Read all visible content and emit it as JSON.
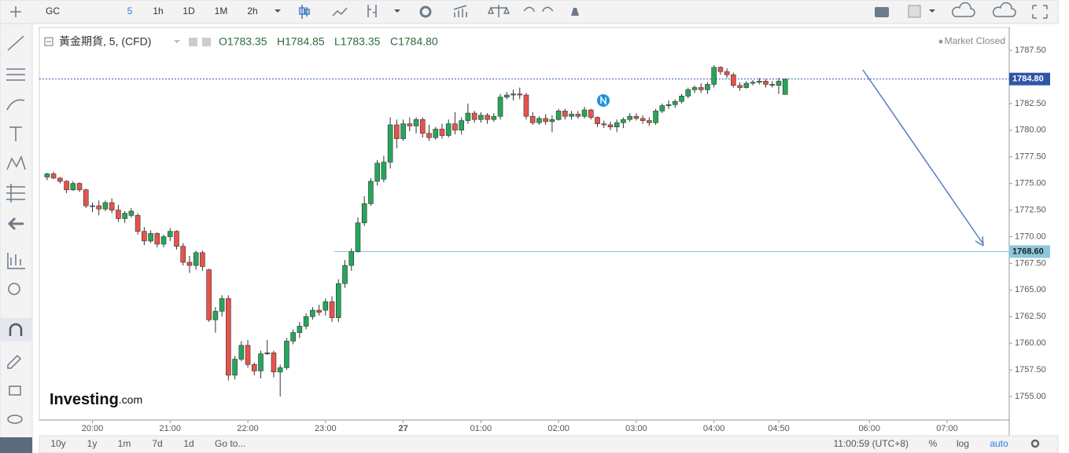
{
  "toolbar": {
    "symbol": "GC",
    "intervals": [
      "5",
      "1h",
      "1D",
      "1M",
      "2h"
    ]
  },
  "legend": {
    "name": "黃金期貨, 5, (CFD)",
    "ohlc": [
      "O1783.35",
      "H1784.85",
      "L1783.35",
      "C1784.80"
    ],
    "status": "Market Closed"
  },
  "logo": {
    "main": "Investing",
    "suffix": ".com"
  },
  "bottom_bar": {
    "ranges": [
      "10y",
      "1y",
      "1m",
      "7d",
      "1d"
    ],
    "goto": "Go to...",
    "clock": "11:00:59 (UTC+8)",
    "options": [
      "%",
      "log",
      "auto"
    ]
  },
  "chart_data": {
    "type": "candlestick",
    "up_color": "#26a65b",
    "down_color": "#e8534a",
    "x": [
      "19:25",
      "19:30",
      "19:35",
      "19:40",
      "19:45",
      "19:50",
      "19:55",
      "20:00",
      "20:05",
      "20:10",
      "20:15",
      "20:20",
      "20:25",
      "20:30",
      "20:35",
      "20:40",
      "20:45",
      "20:50",
      "20:55",
      "21:00",
      "21:05",
      "21:10",
      "21:15",
      "21:20",
      "21:25",
      "21:30",
      "21:35",
      "21:40",
      "21:45",
      "21:50",
      "21:55",
      "22:00",
      "22:05",
      "22:10",
      "22:15",
      "22:20",
      "22:25",
      "22:30",
      "22:35",
      "22:40",
      "22:45",
      "22:50",
      "22:55",
      "23:00",
      "23:05",
      "23:10",
      "23:15",
      "23:20",
      "23:25",
      "23:30",
      "23:35",
      "23:40",
      "23:45",
      "23:50",
      "23:55",
      "00:00",
      "00:05",
      "00:10",
      "00:15",
      "00:20",
      "00:25",
      "00:30",
      "00:35",
      "00:40",
      "00:45",
      "00:50",
      "00:55",
      "01:00",
      "01:05",
      "01:10",
      "01:15",
      "01:20",
      "01:25",
      "01:30",
      "01:35",
      "01:40",
      "01:45",
      "01:50",
      "01:55",
      "02:00",
      "02:05",
      "02:10",
      "02:15",
      "02:20",
      "02:25",
      "02:30",
      "02:35",
      "02:40",
      "02:45",
      "02:50",
      "02:55",
      "03:00",
      "03:05",
      "03:10",
      "03:15",
      "03:20",
      "03:25",
      "03:30",
      "03:35",
      "03:40",
      "03:45",
      "03:50",
      "03:55",
      "04:00",
      "04:05",
      "04:10",
      "04:15",
      "04:20",
      "04:25",
      "04:30",
      "04:35",
      "04:40",
      "04:45",
      "04:50",
      "04:55"
    ],
    "open": [
      1775.6,
      1775.9,
      1775.5,
      1775.2,
      1774.4,
      1775.0,
      1774.4,
      1772.9,
      1772.9,
      1772.6,
      1773.2,
      1772.5,
      1771.7,
      1772.0,
      1772.0,
      1770.5,
      1769.6,
      1770.3,
      1769.3,
      1770.0,
      1770.5,
      1769.1,
      1767.6,
      1767.3,
      1768.5,
      1766.9,
      1762.2,
      1763.0,
      1764.2,
      1757.0,
      1758.5,
      1759.8,
      1758.0,
      1757.4,
      1759.0,
      1759.1,
      1757.3,
      1757.7,
      1760.2,
      1761.0,
      1761.6,
      1762.5,
      1763.1,
      1763.1,
      1763.9,
      1762.4,
      1765.6,
      1767.3,
      1768.6,
      1771.3,
      1773.1,
      1775.2,
      1775.4,
      1777.0,
      1780.5,
      1779.2,
      1780.6,
      1780.4,
      1781.0,
      1779.7,
      1779.3,
      1780.1,
      1779.5,
      1780.6,
      1780.0,
      1780.9,
      1781.6,
      1781.0,
      1781.4,
      1781.0,
      1781.3,
      1783.1,
      1783.3,
      1783.4,
      1783.3,
      1781.3,
      1780.7,
      1781.1,
      1780.8,
      1781.0,
      1781.8,
      1781.3,
      1781.5,
      1781.3,
      1781.9,
      1781.2,
      1780.6,
      1780.5,
      1780.3,
      1780.7,
      1781.0,
      1781.3,
      1781.1,
      1780.9,
      1780.7,
      1781.8,
      1782.3,
      1782.4,
      1782.7,
      1783.2,
      1783.8,
      1784.0,
      1783.8,
      1784.3,
      1785.9,
      1785.5,
      1785.2,
      1784.2,
      1784.0,
      1784.4,
      1784.5,
      1784.6,
      1784.3,
      1784.2,
      1783.35
    ],
    "high": [
      1776.0,
      1776.1,
      1775.6,
      1775.3,
      1775.2,
      1775.1,
      1774.5,
      1773.2,
      1773.4,
      1773.4,
      1773.6,
      1773.0,
      1772.4,
      1772.7,
      1772.2,
      1770.9,
      1770.6,
      1770.4,
      1770.2,
      1770.8,
      1770.6,
      1769.4,
      1768.2,
      1768.7,
      1768.7,
      1767.0,
      1763.4,
      1764.5,
      1764.5,
      1758.8,
      1760.2,
      1760.3,
      1758.2,
      1759.3,
      1760.3,
      1759.3,
      1758.0,
      1760.5,
      1761.3,
      1762.0,
      1762.8,
      1763.4,
      1763.6,
      1764.2,
      1764.4,
      1766.0,
      1767.8,
      1768.9,
      1771.8,
      1773.8,
      1775.5,
      1777.2,
      1777.6,
      1781.2,
      1781.0,
      1781.0,
      1781.2,
      1781.2,
      1781.2,
      1780.5,
      1780.3,
      1780.6,
      1781.0,
      1781.7,
      1781.2,
      1782.5,
      1781.8,
      1781.7,
      1781.6,
      1781.6,
      1783.4,
      1783.6,
      1783.8,
      1784.0,
      1783.5,
      1781.7,
      1781.3,
      1781.5,
      1781.4,
      1782.0,
      1782.0,
      1781.8,
      1781.8,
      1782.2,
      1782.0,
      1781.3,
      1780.9,
      1780.8,
      1781.0,
      1781.2,
      1781.6,
      1781.6,
      1781.4,
      1781.2,
      1782.0,
      1782.5,
      1782.8,
      1782.9,
      1783.4,
      1784.0,
      1784.2,
      1784.4,
      1784.5,
      1786.1,
      1786.0,
      1785.8,
      1785.4,
      1784.5,
      1784.6,
      1784.7,
      1784.9,
      1784.8,
      1784.6,
      1784.9,
      1784.85
    ],
    "low": [
      1775.3,
      1775.4,
      1775.0,
      1774.1,
      1774.3,
      1774.2,
      1772.7,
      1772.3,
      1772.0,
      1772.4,
      1772.2,
      1771.4,
      1771.3,
      1771.8,
      1770.2,
      1769.2,
      1769.4,
      1769.0,
      1769.0,
      1769.6,
      1768.8,
      1767.3,
      1766.6,
      1766.9,
      1766.8,
      1762.0,
      1761.0,
      1762.5,
      1756.5,
      1756.6,
      1758.3,
      1757.7,
      1757.0,
      1756.7,
      1758.9,
      1756.8,
      1755.0,
      1757.5,
      1759.9,
      1760.5,
      1761.3,
      1762.2,
      1762.6,
      1762.6,
      1762.0,
      1762.0,
      1765.2,
      1766.8,
      1768.5,
      1771.0,
      1772.9,
      1774.8,
      1775.1,
      1776.4,
      1778.3,
      1779.0,
      1779.9,
      1779.7,
      1779.3,
      1779.0,
      1779.1,
      1779.2,
      1779.3,
      1779.6,
      1779.6,
      1780.6,
      1780.7,
      1780.7,
      1780.6,
      1780.8,
      1781.0,
      1782.9,
      1782.8,
      1782.9,
      1781.0,
      1780.5,
      1780.5,
      1780.5,
      1779.8,
      1780.9,
      1781.0,
      1781.0,
      1781.1,
      1781.1,
      1781.0,
      1780.3,
      1780.2,
      1780.0,
      1779.8,
      1780.2,
      1780.8,
      1780.9,
      1780.6,
      1780.4,
      1780.5,
      1781.6,
      1782.0,
      1782.1,
      1782.5,
      1783.0,
      1783.5,
      1783.5,
      1783.4,
      1784.0,
      1785.2,
      1784.9,
      1784.0,
      1783.7,
      1783.9,
      1784.2,
      1784.3,
      1784.0,
      1784.0,
      1783.4,
      1783.35
    ],
    "close": [
      1775.9,
      1775.5,
      1775.2,
      1774.4,
      1775.0,
      1774.4,
      1772.9,
      1772.9,
      1772.6,
      1773.2,
      1772.5,
      1771.7,
      1772.2,
      1772.4,
      1770.5,
      1769.6,
      1770.3,
      1769.3,
      1770.0,
      1770.5,
      1769.1,
      1767.6,
      1767.3,
      1768.5,
      1767.2,
      1762.2,
      1763.0,
      1764.2,
      1757.0,
      1758.5,
      1759.8,
      1758.0,
      1757.4,
      1759.0,
      1759.1,
      1757.3,
      1757.7,
      1760.2,
      1761.0,
      1761.6,
      1762.5,
      1763.1,
      1762.9,
      1763.9,
      1762.4,
      1765.6,
      1767.3,
      1768.6,
      1771.3,
      1773.1,
      1775.2,
      1776.9,
      1777.0,
      1780.5,
      1779.2,
      1780.6,
      1780.4,
      1781.0,
      1779.7,
      1779.3,
      1780.1,
      1779.5,
      1780.6,
      1780.0,
      1780.9,
      1781.6,
      1781.0,
      1781.4,
      1781.0,
      1781.3,
      1783.1,
      1783.3,
      1783.4,
      1783.3,
      1781.3,
      1780.7,
      1781.1,
      1780.8,
      1781.0,
      1781.8,
      1781.3,
      1781.5,
      1781.3,
      1781.9,
      1781.2,
      1780.6,
      1780.5,
      1780.3,
      1780.7,
      1781.0,
      1781.3,
      1781.1,
      1780.9,
      1780.7,
      1781.8,
      1782.3,
      1782.4,
      1782.7,
      1783.2,
      1783.8,
      1784.0,
      1783.8,
      1784.3,
      1785.9,
      1785.5,
      1785.2,
      1784.2,
      1784.0,
      1784.4,
      1784.5,
      1784.6,
      1784.3,
      1784.2,
      1784.6,
      1784.8
    ],
    "xlim": [
      "19:19",
      "07:48"
    ],
    "xticks": [
      "20:00",
      "21:00",
      "22:00",
      "23:00",
      "27",
      "01:00",
      "02:00",
      "03:00",
      "04:00",
      "04:50",
      "06:00",
      "07:00"
    ],
    "ylim": [
      1752.79,
      1789.64
    ],
    "yticks": [
      {
        "value": 1755,
        "label": "1755.00"
      },
      {
        "value": 1757.5,
        "label": "1757.50"
      },
      {
        "value": 1760,
        "label": "1760.00"
      },
      {
        "value": 1762.5,
        "label": "1762.50"
      },
      {
        "value": 1765,
        "label": "1765.00"
      },
      {
        "value": 1767.5,
        "label": "1767.50"
      },
      {
        "value": 1770,
        "label": "1770.00"
      },
      {
        "value": 1772.5,
        "label": "1772.50"
      },
      {
        "value": 1775,
        "label": "1775.00"
      },
      {
        "value": 1777.5,
        "label": "1777.50"
      },
      {
        "value": 1780,
        "label": "1780.00"
      },
      {
        "value": 1782.5,
        "label": "1782.50"
      },
      {
        "value": 1785,
        "label": "1785.00"
      },
      {
        "value": 1787.5,
        "label": "1787.50"
      }
    ],
    "price_lines": [
      {
        "value": 1784.8,
        "label": "1784.80",
        "style": "dotted",
        "color": "#2f55a8"
      },
      {
        "value": 1768.6,
        "label": "1768.60",
        "style": "solid",
        "color": "#8cc7dc"
      }
    ],
    "grid": false
  }
}
